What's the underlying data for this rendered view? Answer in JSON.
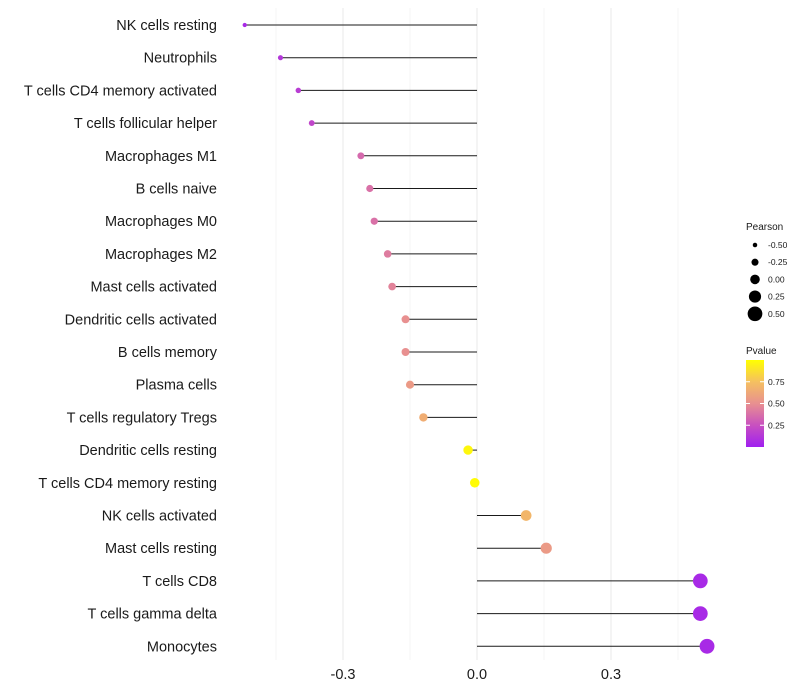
{
  "chart_data": {
    "type": "lollipop",
    "categories": [
      "NK cells resting",
      "Neutrophils",
      "T cells CD4 memory activated",
      "T cells follicular helper",
      "Macrophages M1",
      "B cells naive",
      "Macrophages M0",
      "Macrophages M2",
      "Mast cells activated",
      "Dendritic cells activated",
      "B cells memory",
      "Plasma cells",
      "T cells regulatory  Tregs ",
      "Dendritic cells resting",
      "T cells CD4 memory resting",
      "NK cells activated",
      "Mast cells resting",
      "T cells CD8",
      "T cells gamma delta",
      "Monocytes"
    ],
    "values": [
      -0.52,
      -0.44,
      -0.4,
      -0.37,
      -0.26,
      -0.24,
      -0.23,
      -0.2,
      -0.19,
      -0.16,
      -0.16,
      -0.15,
      -0.12,
      -0.02,
      -0.005,
      0.11,
      0.155,
      0.5,
      0.5,
      0.515
    ],
    "pvalues": [
      0.05,
      0.12,
      0.15,
      0.2,
      0.35,
      0.38,
      0.38,
      0.42,
      0.45,
      0.5,
      0.5,
      0.55,
      0.65,
      0.97,
      0.99,
      0.7,
      0.55,
      0.05,
      0.05,
      0.05
    ],
    "xlim": [
      -0.6,
      0.6
    ],
    "xticks": [
      -0.3,
      0.0,
      0.3
    ],
    "xtick_labels": [
      "-0.3",
      "0.0",
      "0.3"
    ],
    "title": "",
    "xlabel": "",
    "ylabel": "",
    "grid": true,
    "size_legend": {
      "title": "Pearson",
      "labels": [
        "-0.50",
        "-0.25",
        "0.00",
        "0.25",
        "0.50"
      ],
      "values": [
        -0.5,
        -0.25,
        0.0,
        0.25,
        0.5
      ]
    },
    "color_legend": {
      "title": "Pvalue",
      "labels": [
        "0.75",
        "0.50",
        "0.25"
      ],
      "values": [
        0.75,
        0.5,
        0.25
      ],
      "range": [
        0.0,
        1.0
      ],
      "colors": [
        "#a020f0",
        "#c850c0",
        "#e89090",
        "#f5c060",
        "#ffff00"
      ]
    }
  }
}
